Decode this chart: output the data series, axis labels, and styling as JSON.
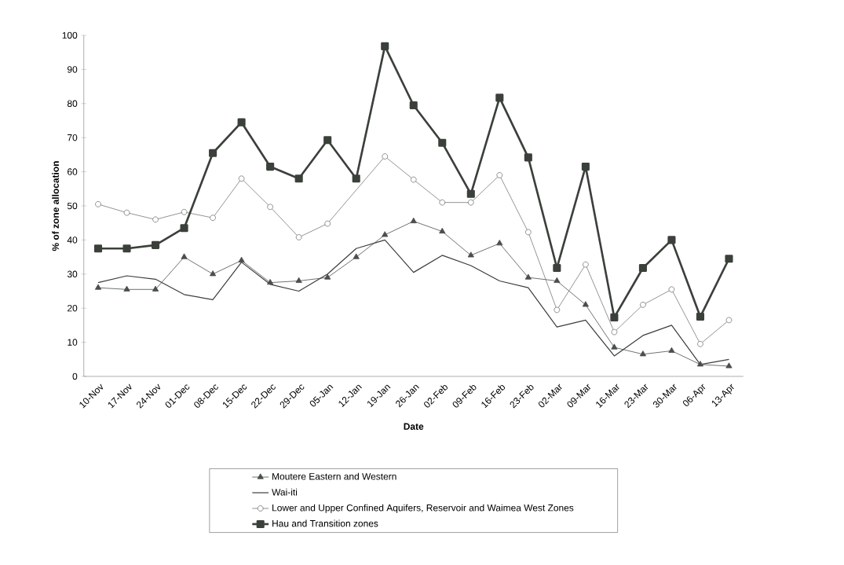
{
  "chart_data": {
    "type": "line",
    "xlabel": "Date",
    "ylabel": "% of zone allocation",
    "categories": [
      "10-Nov",
      "17-Nov",
      "24-Nov",
      "01-Dec",
      "08-Dec",
      "15-Dec",
      "22-Dec",
      "29-Dec",
      "05-Jan",
      "12-Jan",
      "19-Jan",
      "26-Jan",
      "02-Feb",
      "09-Feb",
      "16-Feb",
      "23-Feb",
      "02-Mar",
      "09-Mar",
      "16-Mar",
      "23-Mar",
      "30-Mar",
      "06-Apr",
      "13-Apr"
    ],
    "series": [
      {
        "name": "Moutere Eastern and Western",
        "color": "#4a4f4a",
        "marker": "triangle",
        "values": [
          26,
          25.5,
          25.5,
          35,
          30,
          34,
          27.5,
          28,
          29,
          35,
          41.5,
          45.5,
          42.5,
          35.5,
          39,
          29,
          28,
          21,
          8.5,
          6.5,
          7.5,
          3.5,
          3
        ]
      },
      {
        "name": "Wai-iti",
        "color": "#3a3f3a",
        "marker": "none",
        "values": [
          27.5,
          29.5,
          28.5,
          24,
          22.5,
          33.5,
          27,
          25,
          30,
          37.5,
          40,
          30.5,
          35.5,
          32.5,
          28,
          26,
          14.5,
          16.5,
          6,
          12,
          15,
          3.5,
          5
        ]
      },
      {
        "name": "Lower and Upper Confined Aquifers, Reservoir and Waimea West Zones",
        "color": "#5a5f5a",
        "marker": "circle",
        "values": [
          50.5,
          48,
          46,
          48.2,
          46.5,
          58,
          49.7,
          40.8,
          44.8,
          null,
          64.5,
          57.7,
          51,
          51,
          59,
          42.3,
          19.5,
          32.8,
          13,
          21,
          25.5,
          9.5,
          16.5
        ]
      },
      {
        "name": "Hau and Transition zones",
        "color": "#3b403b",
        "marker": "square",
        "values": [
          37.5,
          37.5,
          38.5,
          43.5,
          65.5,
          74.5,
          61.5,
          58,
          69.3,
          58,
          96.8,
          79.5,
          68.5,
          53.5,
          81.7,
          64.2,
          31.8,
          61.5,
          17.3,
          31.8,
          40,
          17.5,
          34.5
        ]
      }
    ],
    "ylim": [
      0,
      100
    ],
    "yticks": [
      0,
      10,
      20,
      30,
      40,
      50,
      60,
      70,
      80,
      90,
      100
    ],
    "legend": "bottom"
  }
}
